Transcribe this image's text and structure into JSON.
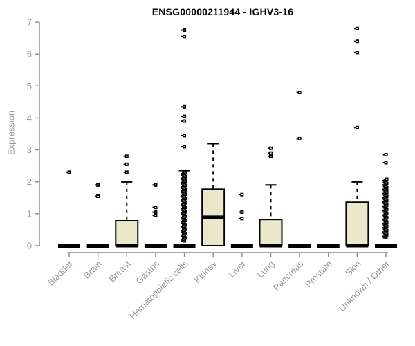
{
  "chart_data": {
    "type": "boxplot",
    "title": "ENSG00000211944 - IGHV3-16",
    "ylabel": "Expression",
    "xlabel": "",
    "ylim": [
      0,
      7
    ],
    "yticks": [
      0,
      1,
      2,
      3,
      4,
      5,
      6,
      7
    ],
    "grid": false,
    "legend": "none",
    "colors": {
      "box_fill": "#ece7cb",
      "box_stroke": "#000000",
      "axis": "#8a8a8a",
      "tick_label": "#979797",
      "title": "#000000"
    },
    "categories": [
      "Bladder",
      "Brain",
      "Breast",
      "Gastric",
      "Hematopoietic cells",
      "Kidney",
      "Liver",
      "Lung",
      "Pancreas",
      "Prostate",
      "Skin",
      "Unknown / Other"
    ],
    "series": [
      {
        "category": "Bladder",
        "flat": true,
        "median": 0,
        "q1": 0,
        "q3": 0,
        "whisker_high": 0,
        "outliers": [
          2.3
        ]
      },
      {
        "category": "Brain",
        "flat": true,
        "median": 0,
        "q1": 0,
        "q3": 0,
        "whisker_high": 0,
        "outliers": [
          1.9,
          1.55
        ]
      },
      {
        "category": "Breast",
        "flat": false,
        "median": 0,
        "q1": 0,
        "q3": 0.78,
        "whisker_high": 2.0,
        "outliers": [
          2.8,
          2.55,
          2.3
        ]
      },
      {
        "category": "Gastric",
        "flat": true,
        "median": 0,
        "q1": 0,
        "q3": 0,
        "whisker_high": 0,
        "outliers": [
          1.9,
          1.2,
          1.05,
          0.95
        ]
      },
      {
        "category": "Hematopoietic cells",
        "flat": true,
        "median": 0,
        "q1": 0,
        "q3": 0,
        "whisker_high": 2.35,
        "outliers": [
          6.75,
          6.55,
          4.35,
          4.05,
          3.9,
          3.45,
          3.1
        ],
        "dense_outliers": {
          "min": 0.15,
          "max": 2.3,
          "count": 48
        }
      },
      {
        "category": "Kidney",
        "flat": false,
        "median": 0.89,
        "q1": 0,
        "q3": 1.77,
        "whisker_high": 3.2,
        "outliers": []
      },
      {
        "category": "Liver",
        "flat": true,
        "median": 0,
        "q1": 0,
        "q3": 0,
        "whisker_high": 0,
        "outliers": [
          1.6,
          1.05,
          0.85
        ]
      },
      {
        "category": "Lung",
        "flat": false,
        "median": 0,
        "q1": 0,
        "q3": 0.82,
        "whisker_high": 1.9,
        "outliers": [
          3.05,
          2.9,
          2.8
        ]
      },
      {
        "category": "Pancreas",
        "flat": true,
        "median": 0,
        "q1": 0,
        "q3": 0,
        "whisker_high": 0,
        "outliers": [
          4.8,
          3.35
        ]
      },
      {
        "category": "Prostate",
        "flat": true,
        "median": 0,
        "q1": 0,
        "q3": 0,
        "whisker_high": 0,
        "outliers": []
      },
      {
        "category": "Skin",
        "flat": false,
        "median": 0,
        "q1": 0,
        "q3": 1.36,
        "whisker_high": 2.0,
        "outliers": [
          6.8,
          6.4,
          6.05,
          3.7
        ]
      },
      {
        "category": "Unknown / Other",
        "flat": true,
        "median": 0,
        "q1": 0,
        "q3": 0,
        "whisker_high": 0,
        "outliers": [
          2.85,
          2.6
        ],
        "dense_outliers": {
          "min": 0.25,
          "max": 2.08,
          "count": 42
        }
      }
    ]
  }
}
